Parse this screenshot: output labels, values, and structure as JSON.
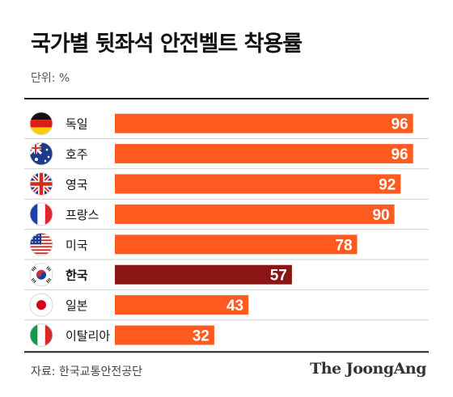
{
  "header": {
    "title": "국가별 뒷좌석 안전벨트 착용률",
    "unit": "단위: %"
  },
  "footer": {
    "source": "자료: 한국교통안전공단",
    "brand": "The JoongAng"
  },
  "colors": {
    "bar": "#ff5a1f",
    "highlight_bar": "#8b1414",
    "rule": "#222222",
    "row_separator": "#cfcfcf"
  },
  "chart_data": {
    "type": "bar",
    "orientation": "horizontal",
    "title": "국가별 뒷좌석 안전벨트 착용률",
    "unit": "%",
    "xlim": [
      0,
      100
    ],
    "grid": false,
    "legend": "none",
    "categories": [
      "독일",
      "호주",
      "영국",
      "프랑스",
      "미국",
      "한국",
      "일본",
      "이탈리아"
    ],
    "values": [
      96,
      96,
      92,
      90,
      78,
      57,
      43,
      32
    ],
    "flags": [
      "germany-flag-icon",
      "australia-flag-icon",
      "uk-flag-icon",
      "france-flag-icon",
      "usa-flag-icon",
      "korea-flag-icon",
      "japan-flag-icon",
      "italy-flag-icon"
    ],
    "highlight": "한국"
  }
}
